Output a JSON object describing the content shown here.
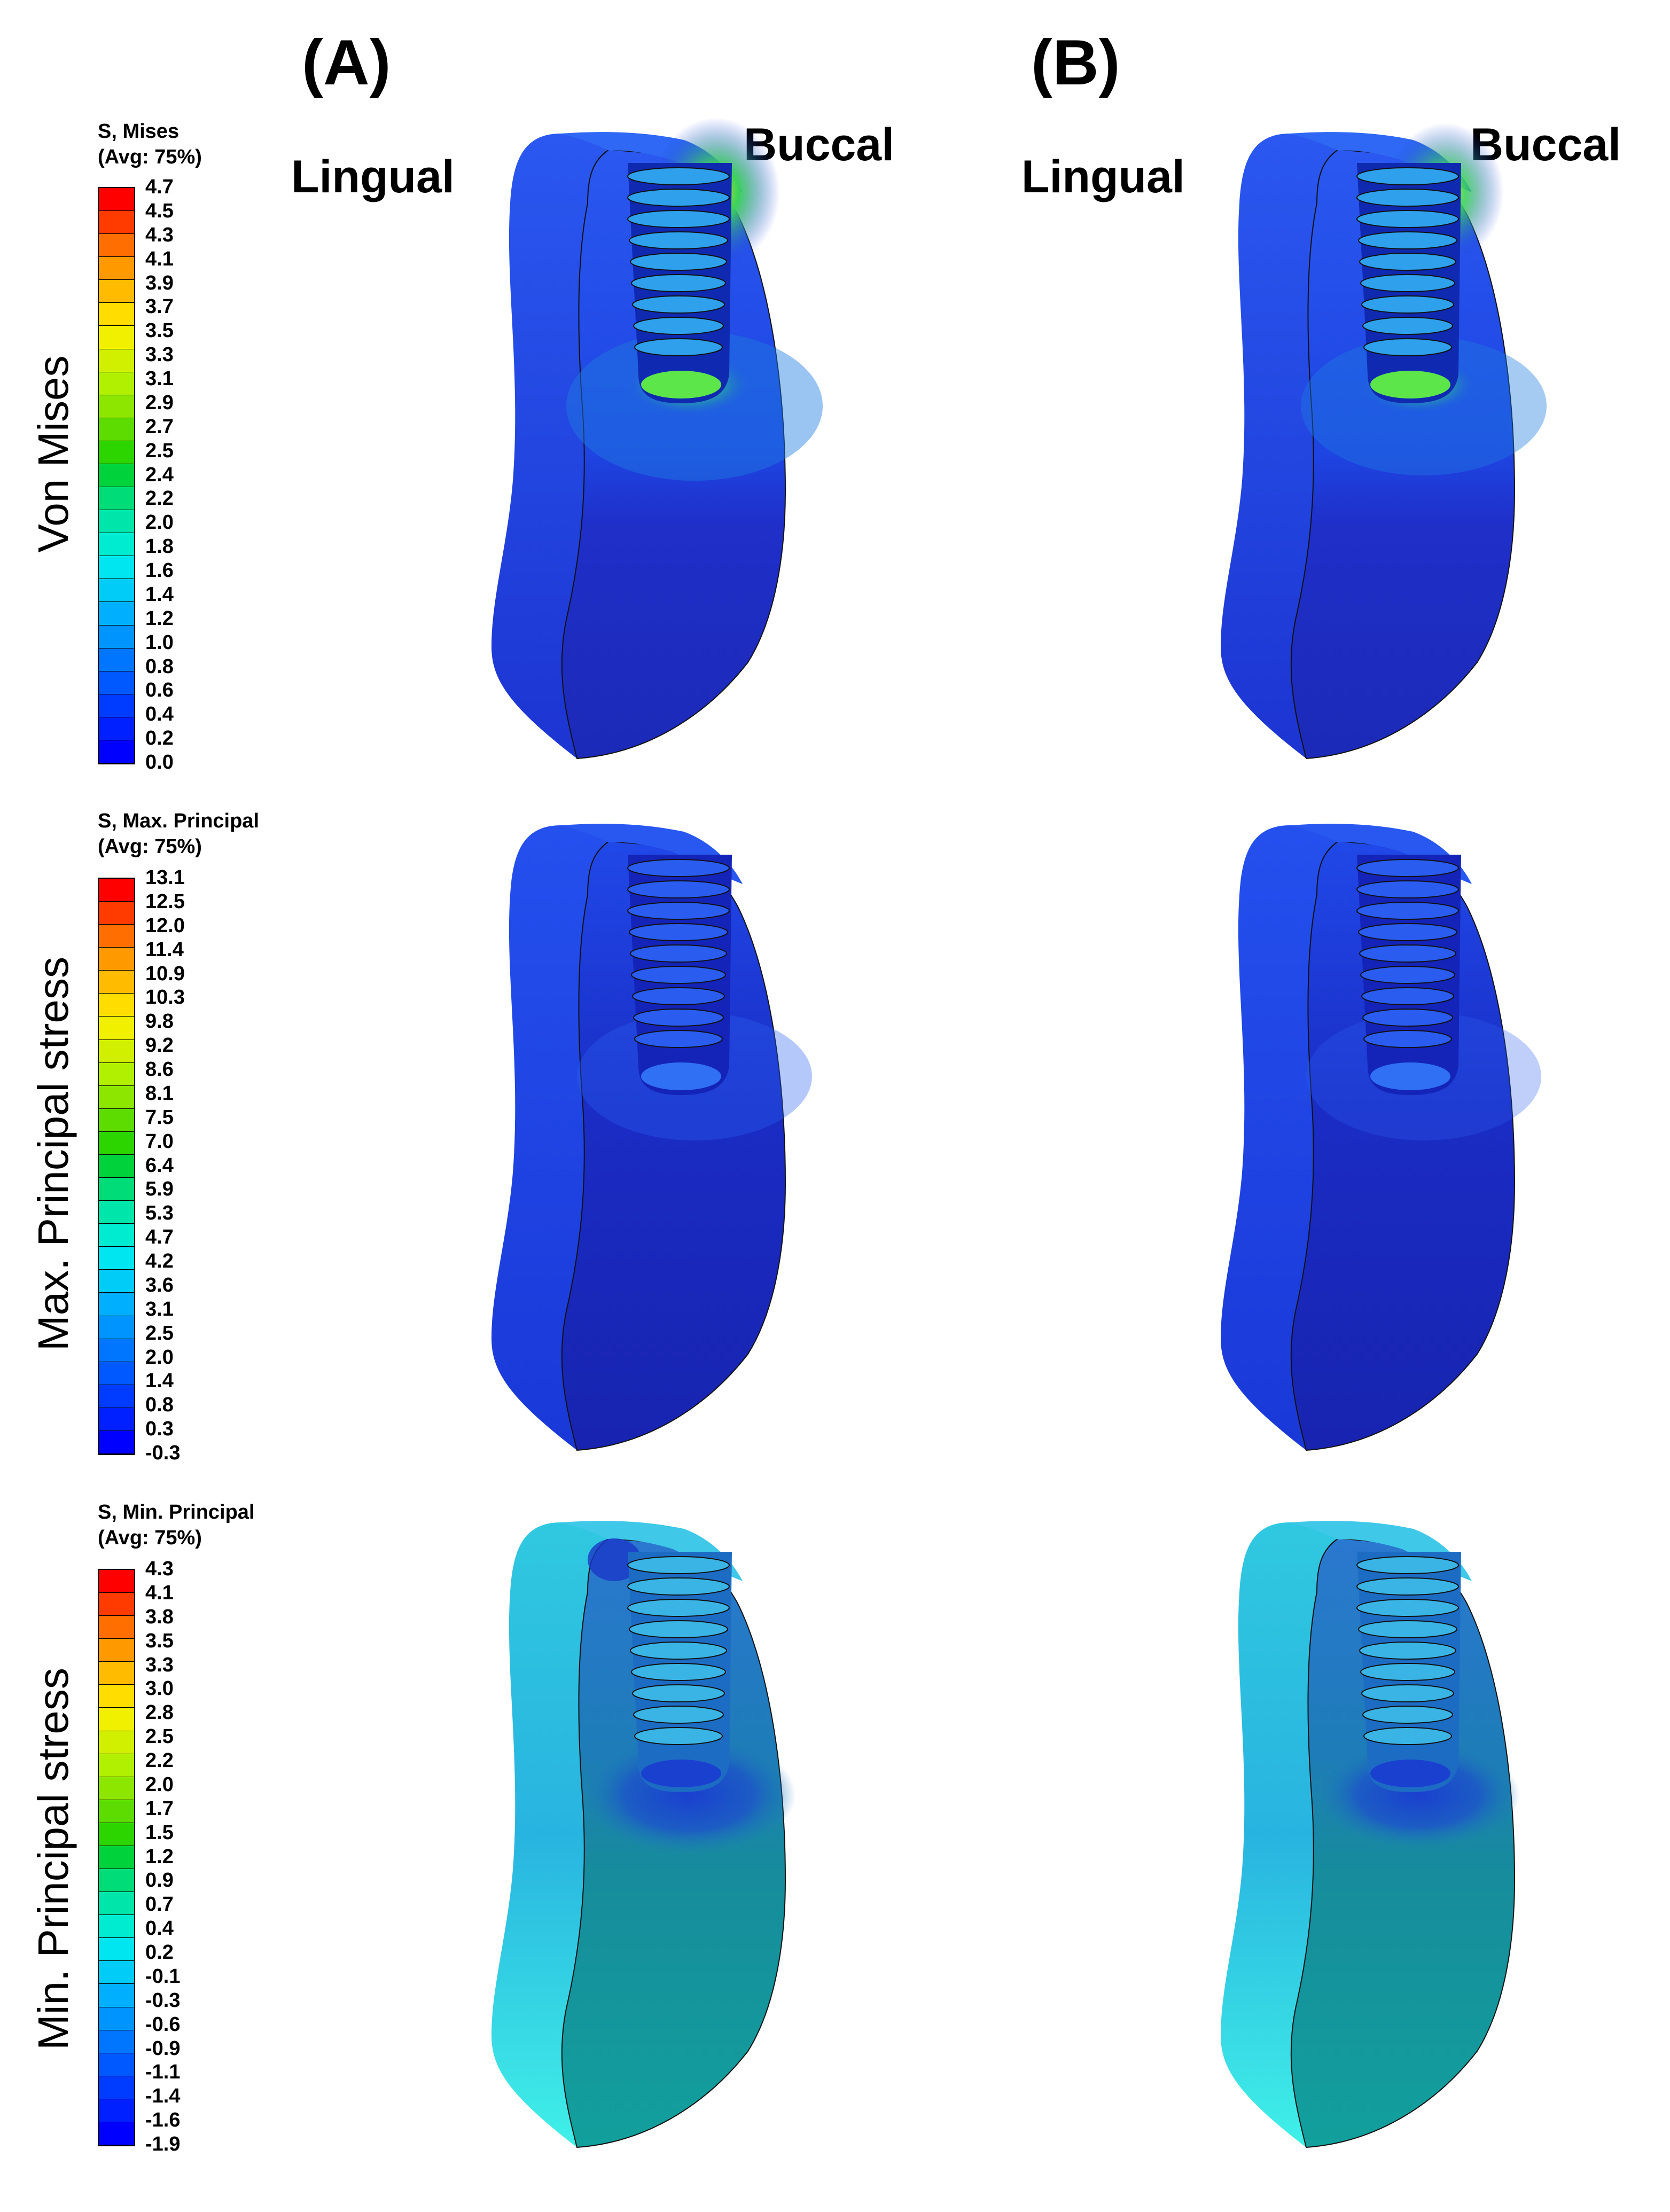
{
  "columns": [
    {
      "title": "(A)",
      "lingual": "Lingual",
      "buccal": "Buccal"
    },
    {
      "title": "(B)",
      "lingual": "Lingual",
      "buccal": "Buccal"
    }
  ],
  "rows": [
    {
      "label": "Von Mises",
      "legend_title_1": "S, Mises",
      "legend_title_2": "(Avg: 75%)",
      "ticks": [
        "4.7",
        "4.5",
        "4.3",
        "4.1",
        "3.9",
        "3.7",
        "3.5",
        "3.3",
        "3.1",
        "2.9",
        "2.7",
        "2.5",
        "2.4",
        "2.2",
        "2.0",
        "1.8",
        "1.6",
        "1.4",
        "1.2",
        "1.0",
        "0.8",
        "0.6",
        "0.4",
        "0.2",
        "0.0"
      ],
      "palette": [
        "outer_dark_blue",
        "bright_blue",
        "cyan_green",
        "yellow_green",
        "orange_red"
      ]
    },
    {
      "label": "Max.  Principal stress",
      "legend_title_1": "S, Max. Principal",
      "legend_title_2": "(Avg: 75%)",
      "ticks": [
        "13.1",
        "12.5",
        "12.0",
        "11.4",
        "10.9",
        "10.3",
        "9.8",
        "9.2",
        "8.6",
        "8.1",
        "7.5",
        "7.0",
        "6.4",
        "5.9",
        "5.3",
        "4.7",
        "4.2",
        "3.6",
        "3.1",
        "2.5",
        "2.0",
        "1.4",
        "0.8",
        "0.3",
        "-0.3"
      ],
      "palette": [
        "outer_dark_blue",
        "bright_blue"
      ]
    },
    {
      "label": "Min.  Principal stress",
      "legend_title_1": "S, Min. Principal",
      "legend_title_2": "(Avg: 75%)",
      "ticks": [
        "4.3",
        "4.1",
        "3.8",
        "3.5",
        "3.3",
        "3.0",
        "2.8",
        "2.5",
        "2.2",
        "2.0",
        "1.7",
        "1.5",
        "1.2",
        "0.9",
        "0.7",
        "0.4",
        "0.2",
        "-0.1",
        "-0.3",
        "-0.6",
        "-0.9",
        "-1.1",
        "-1.4",
        "-1.6",
        "-1.9"
      ],
      "palette": [
        "cyan",
        "teal",
        "dark_blue"
      ]
    }
  ],
  "colorscale": [
    "#ff0000",
    "#ff3b00",
    "#ff6e00",
    "#ff9900",
    "#ffbb00",
    "#ffdd00",
    "#f0f000",
    "#d0f000",
    "#b0f000",
    "#8ce600",
    "#5cdc00",
    "#2cd400",
    "#00d23c",
    "#00dc78",
    "#00e6aa",
    "#00ecd0",
    "#00e6f0",
    "#00ccf8",
    "#00b0ff",
    "#0094ff",
    "#0076ff",
    "#0058ff",
    "#003cff",
    "#0020ff",
    "#0000ff"
  ],
  "colors": {
    "mises_base": "#1e3ce6",
    "mises_side": "#1a2fc8",
    "mises_hot": "#3cd23c",
    "maxp_base": "#1830d8",
    "maxp_side": "#1a24b4",
    "minp_base": "#1aa0a0",
    "minp_light": "#38e0e8",
    "minp_mid": "#28a8d8"
  }
}
